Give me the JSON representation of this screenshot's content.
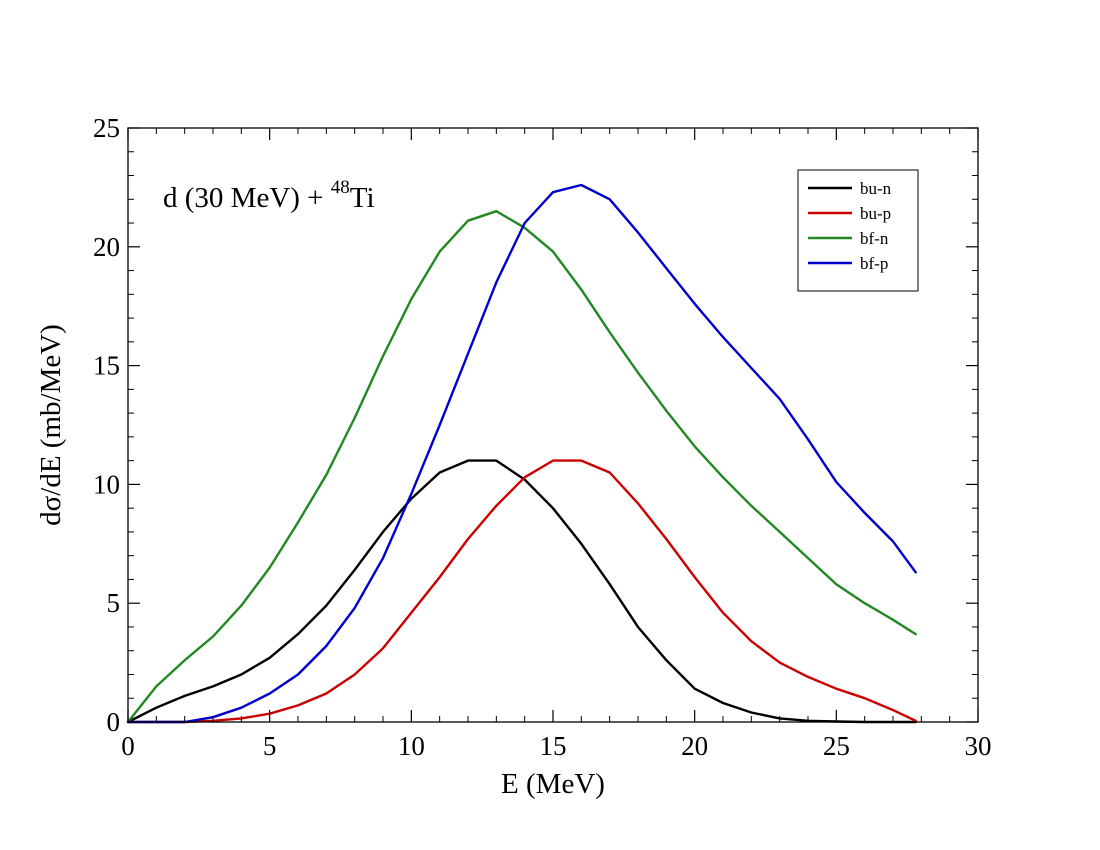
{
  "chart_data": {
    "type": "line",
    "title": "",
    "xlabel": "E (MeV)",
    "ylabel": "dσ/dE (mb/MeV)",
    "xlim": [
      0,
      30
    ],
    "ylim": [
      0,
      25
    ],
    "x_ticks": [
      0,
      5,
      10,
      15,
      20,
      25,
      30
    ],
    "y_ticks": [
      0,
      5,
      10,
      15,
      20,
      25
    ],
    "x_tick_labels": [
      "0",
      "5",
      "10",
      "15",
      "20",
      "25",
      "30"
    ],
    "y_tick_labels": [
      "0",
      "5",
      "10",
      "15",
      "20",
      "25"
    ],
    "grid": false,
    "legend_position": "top-right",
    "annotation": {
      "prefix": "d (30 MeV) + ",
      "superscript": "48",
      "suffix": "Ti"
    },
    "series": [
      {
        "name": "bu-n",
        "color": "#000000",
        "x": [
          0,
          1,
          2,
          3,
          4,
          5,
          6,
          7,
          8,
          9,
          10,
          11,
          12,
          13,
          14,
          15,
          16,
          17,
          18,
          19,
          20,
          21,
          22,
          23,
          24,
          25,
          26,
          27,
          27.8
        ],
        "y": [
          0,
          0.6,
          1.1,
          1.5,
          2.0,
          2.7,
          3.7,
          4.9,
          6.4,
          8.0,
          9.4,
          10.5,
          11.0,
          11.0,
          10.2,
          9.0,
          7.5,
          5.8,
          4.0,
          2.6,
          1.4,
          0.8,
          0.4,
          0.15,
          0.05,
          0.02,
          0,
          0,
          0
        ]
      },
      {
        "name": "bu-p",
        "color": "#cc0000",
        "x": [
          0,
          1,
          2,
          3,
          4,
          5,
          6,
          7,
          8,
          9,
          10,
          11,
          12,
          13,
          14,
          15,
          16,
          17,
          18,
          19,
          20,
          21,
          22,
          23,
          24,
          25,
          26,
          27,
          27.8
        ],
        "y": [
          0,
          0,
          0,
          0.05,
          0.15,
          0.35,
          0.7,
          1.2,
          2.0,
          3.1,
          4.6,
          6.1,
          7.7,
          9.1,
          10.3,
          11.0,
          11.0,
          10.5,
          9.2,
          7.7,
          6.1,
          4.6,
          3.4,
          2.5,
          1.9,
          1.4,
          1.0,
          0.5,
          0.05
        ]
      },
      {
        "name": "bf-n",
        "color": "#228822",
        "x": [
          0,
          1,
          2,
          3,
          4,
          5,
          6,
          7,
          8,
          9,
          10,
          11,
          12,
          13,
          14,
          15,
          16,
          17,
          18,
          19,
          20,
          21,
          22,
          23,
          24,
          25,
          26,
          27,
          27.8
        ],
        "y": [
          0,
          1.5,
          2.6,
          3.6,
          4.9,
          6.5,
          8.4,
          10.4,
          12.8,
          15.4,
          17.8,
          19.8,
          21.1,
          21.5,
          20.8,
          19.8,
          18.2,
          16.4,
          14.7,
          13.1,
          11.6,
          10.3,
          9.1,
          8.0,
          6.9,
          5.8,
          5.0,
          4.3,
          3.7
        ]
      },
      {
        "name": "bf-p",
        "color": "#0000cc",
        "x": [
          0,
          1,
          2,
          3,
          4,
          5,
          6,
          7,
          8,
          9,
          10,
          11,
          12,
          13,
          14,
          15,
          16,
          17,
          18,
          19,
          20,
          21,
          22,
          23,
          24,
          25,
          26,
          27,
          27.8
        ],
        "y": [
          0,
          0,
          0,
          0.2,
          0.6,
          1.2,
          2.0,
          3.2,
          4.8,
          6.9,
          9.6,
          12.5,
          15.5,
          18.5,
          21.0,
          22.3,
          22.6,
          22.0,
          20.6,
          19.1,
          17.6,
          16.2,
          14.9,
          13.6,
          11.9,
          10.1,
          8.8,
          7.6,
          6.3
        ]
      }
    ]
  }
}
